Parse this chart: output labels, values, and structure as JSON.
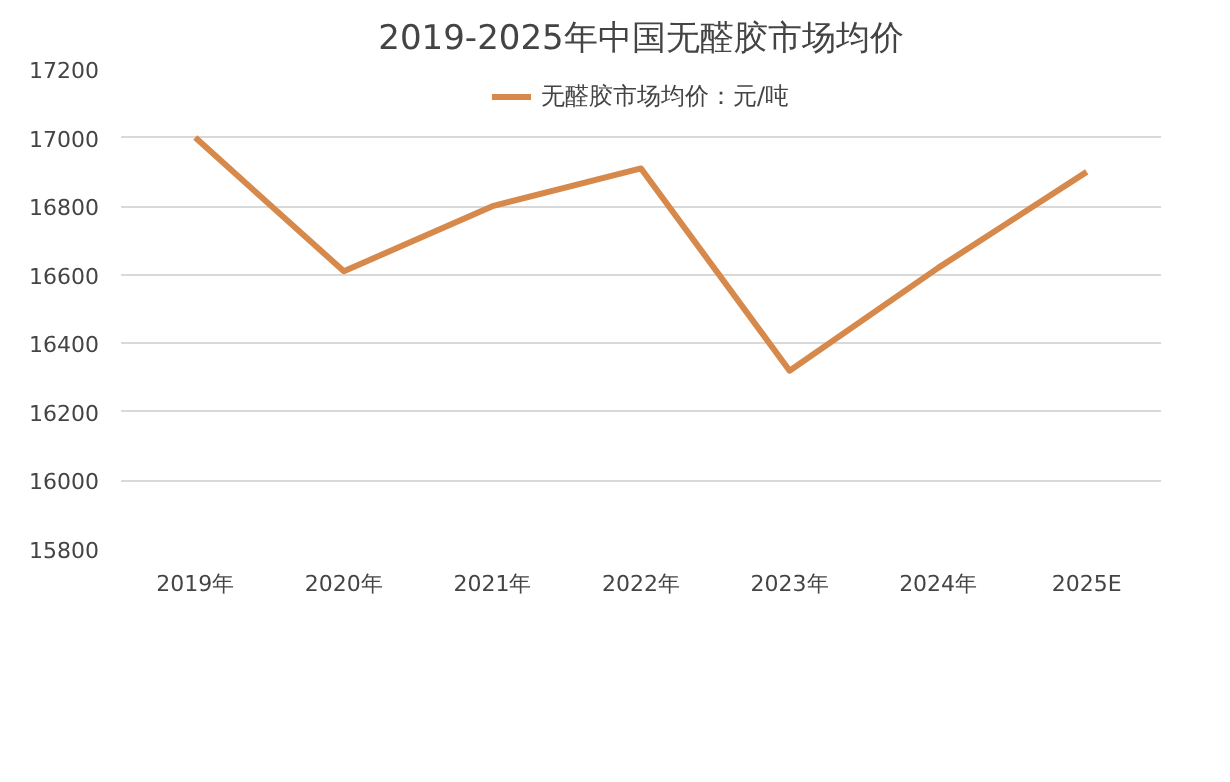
{
  "chart_data": {
    "type": "line",
    "title": "2019-2025年中国无醛胶市场均价",
    "categories": [
      "2019年",
      "2020年",
      "2021年",
      "2022年",
      "2023年",
      "2024年",
      "2025E"
    ],
    "series": [
      {
        "name": "无醛胶市场均价：元/吨",
        "color": "#d6894a",
        "values": [
          17000,
          16610,
          16800,
          16910,
          16320,
          16620,
          16900
        ]
      }
    ],
    "ylim": [
      15800,
      17200
    ],
    "yticks": [
      15800,
      16000,
      16200,
      16400,
      16600,
      16800,
      17000,
      17200
    ],
    "grid": "y",
    "legend": "top",
    "marker": "none",
    "line_style": "solid"
  }
}
